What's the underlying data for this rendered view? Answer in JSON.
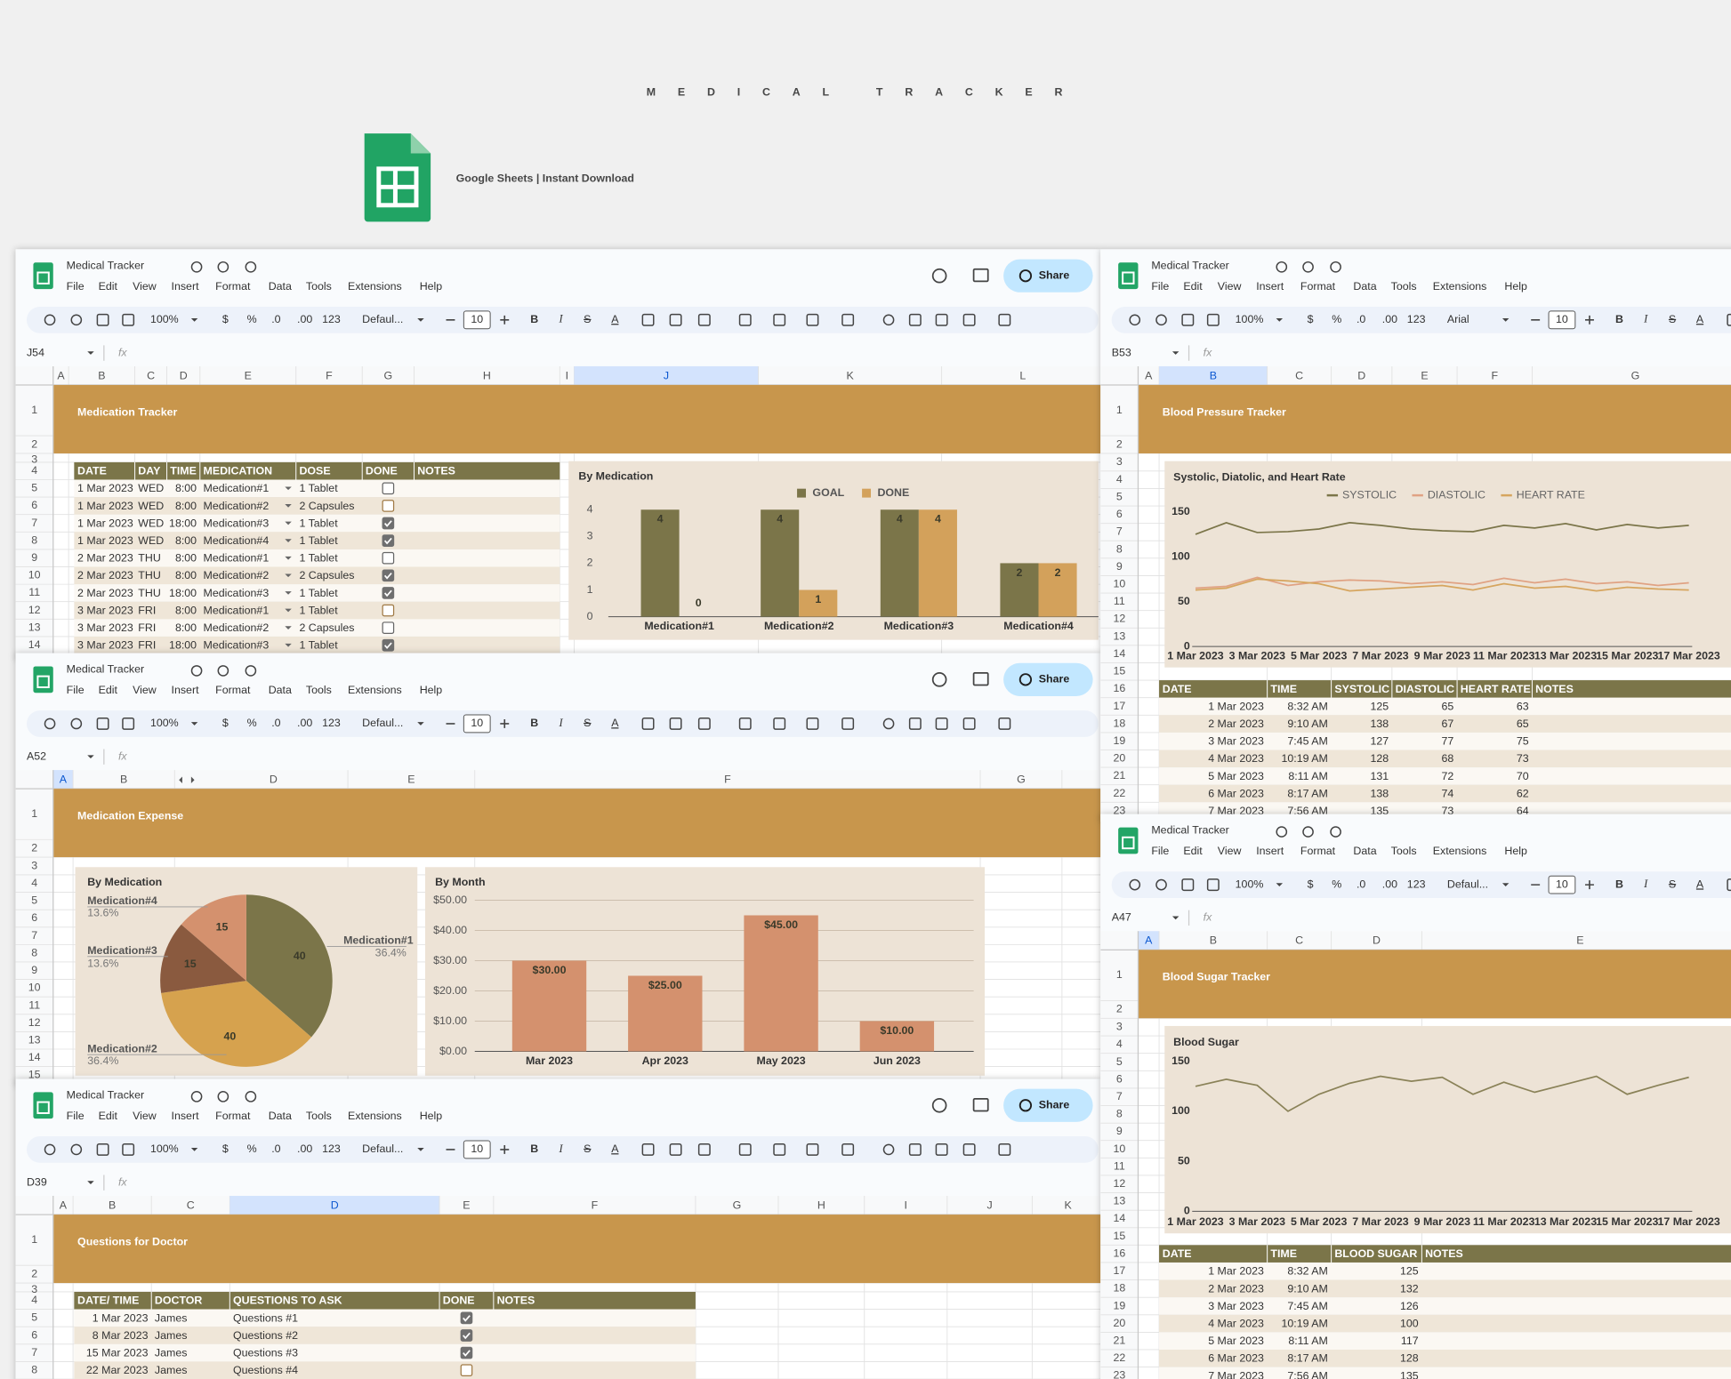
{
  "header": {
    "title": "MEDICAL TRACKER",
    "subtitle": "Google Sheets | Instant Download"
  },
  "app": {
    "doc_title": "Medical Tracker",
    "menus": [
      "File",
      "Edit",
      "View",
      "Insert",
      "Format",
      "Data",
      "Tools",
      "Extensions",
      "Help"
    ],
    "share": "Share",
    "zoom": "100%",
    "currency": "$",
    "percent": "%",
    "decrease_decimal": ".0",
    "increase_decimal": ".00",
    "number_format": "123",
    "font_size": 10,
    "bold": "B",
    "italic": "I",
    "strikethrough": "S",
    "text_color": "A",
    "formula": "fx"
  },
  "windows": [
    {
      "title": "Medication Tracker",
      "cell": "J54",
      "font": "Defaul...",
      "columns": [
        "A",
        "B",
        "C",
        "D",
        "E",
        "F",
        "G",
        "H",
        "I",
        "J",
        "K",
        "L"
      ],
      "rows": [
        1,
        2,
        3,
        4,
        5,
        6,
        7,
        8,
        9,
        10,
        11,
        12,
        13,
        14
      ],
      "table": {
        "headers": [
          "DATE",
          "DAY",
          "TIME",
          "MEDICATION",
          "DOSE",
          "DONE",
          "NOTES"
        ],
        "rows": [
          [
            "1 Mar 2023",
            "WED",
            "8:00",
            "Medication#1",
            "1 Tablet",
            false
          ],
          [
            "1 Mar 2023",
            "WED",
            "8:00",
            "Medication#2",
            "2 Capsules",
            false
          ],
          [
            "1 Mar 2023",
            "WED",
            "18:00",
            "Medication#3",
            "1 Tablet",
            true
          ],
          [
            "1 Mar 2023",
            "WED",
            "8:00",
            "Medication#4",
            "1 Tablet",
            true
          ],
          [
            "2 Mar 2023",
            "THU",
            "8:00",
            "Medication#1",
            "1 Tablet",
            false
          ],
          [
            "2 Mar 2023",
            "THU",
            "8:00",
            "Medication#2",
            "2 Capsules",
            true
          ],
          [
            "2 Mar 2023",
            "THU",
            "18:00",
            "Medication#3",
            "1 Tablet",
            true
          ],
          [
            "3 Mar 2023",
            "FRI",
            "8:00",
            "Medication#1",
            "1 Tablet",
            false
          ],
          [
            "3 Mar 2023",
            "FRI",
            "8:00",
            "Medication#2",
            "2 Capsules",
            false
          ],
          [
            "3 Mar 2023",
            "FRI",
            "18:00",
            "Medication#3",
            "1 Tablet",
            true
          ]
        ]
      },
      "charts": [
        {
          "type": "bar",
          "title": "By Medication",
          "categories": [
            "Medication#1",
            "Medication#2",
            "Medication#3",
            "Medication#4"
          ],
          "series": [
            {
              "name": "GOAL",
              "color": "#7b7549",
              "values": [
                4,
                4,
                4,
                2
              ]
            },
            {
              "name": "DONE",
              "color": "#d3a15b",
              "values": [
                0,
                1,
                4,
                2
              ]
            }
          ],
          "ylim": [
            0,
            4
          ],
          "yticks": [
            0,
            1,
            2,
            3,
            4
          ],
          "grid": false
        }
      ]
    },
    {
      "title": "Medication Expense",
      "cell": "A52",
      "font": "Defaul...",
      "columns": [
        "A",
        "B",
        "D",
        "E",
        "F",
        "G"
      ],
      "rows": [
        1,
        2,
        3,
        4,
        5,
        6,
        7,
        8,
        9,
        10,
        11,
        12,
        13,
        14,
        15
      ],
      "charts": [
        {
          "type": "pie",
          "title": "By Medication",
          "categories": [
            "Medication#1",
            "Medication#2",
            "Medication#3",
            "Medication#4"
          ],
          "values": [
            40,
            40,
            15,
            15
          ],
          "percent_labels": [
            "36.4%",
            "36.4%",
            "13.6%",
            "13.6%"
          ],
          "colors": [
            "#7b7549",
            "#d6a24e",
            "#8a5a3f",
            "#d4916e"
          ]
        },
        {
          "type": "bar",
          "title": "By Month",
          "categories": [
            "Mar 2023",
            "Apr 2023",
            "May 2023",
            "Jun 2023"
          ],
          "series": [
            {
              "color": "#d4916e",
              "values": [
                30,
                25,
                45,
                10
              ],
              "value_labels": [
                "$30.00",
                "$25.00",
                "$45.00",
                "$10.00"
              ]
            }
          ],
          "ylim": [
            0,
            50
          ],
          "yticks": [
            {
              "value": 0,
              "label": "$0.00"
            },
            {
              "value": 10,
              "label": "$10.00"
            },
            {
              "value": 20,
              "label": "$20.00"
            },
            {
              "value": 30,
              "label": "$30.00"
            },
            {
              "value": 40,
              "label": "$40.00"
            },
            {
              "value": 50,
              "label": "$50.00"
            }
          ],
          "grid": true
        }
      ]
    },
    {
      "title": "Questions for Doctor",
      "cell": "D39",
      "font": "Defaul...",
      "columns": [
        "A",
        "B",
        "C",
        "D",
        "E",
        "F",
        "G",
        "H",
        "I",
        "J",
        "K"
      ],
      "rows": [
        1,
        2,
        3,
        4,
        5,
        6,
        7,
        8
      ],
      "table": {
        "headers": [
          "DATE/ TIME",
          "DOCTOR",
          "QUESTIONS TO ASK",
          "DONE",
          "NOTES"
        ],
        "rows": [
          [
            "1 Mar 2023",
            "James",
            "Questions #1",
            true
          ],
          [
            "8 Mar 2023",
            "James",
            "Questions #2",
            true
          ],
          [
            "15 Mar 2023",
            "James",
            "Questions #3",
            true
          ],
          [
            "22 Mar 2023",
            "James",
            "Questions #4",
            false
          ]
        ]
      }
    },
    {
      "title": "Blood Pressure Tracker",
      "cell": "B53",
      "font": "Arial",
      "columns": [
        "A",
        "B",
        "C",
        "D",
        "E",
        "F",
        "G"
      ],
      "rows": [
        1,
        2,
        3,
        4,
        5,
        6,
        7,
        8,
        9,
        10,
        11,
        12,
        13,
        14,
        15,
        16,
        17,
        18,
        19,
        20,
        21,
        22,
        23
      ],
      "table": {
        "headers": [
          "DATE",
          "TIME",
          "SYSTOLIC",
          "DIASTOLIC",
          "HEART RATE",
          "NOTES"
        ],
        "rows": [
          [
            "1 Mar 2023",
            "8:32 AM",
            125,
            65,
            63
          ],
          [
            "2 Mar 2023",
            "9:10 AM",
            138,
            67,
            65
          ],
          [
            "3 Mar 2023",
            "7:45 AM",
            127,
            77,
            75
          ],
          [
            "4 Mar 2023",
            "10:19 AM",
            128,
            68,
            73
          ],
          [
            "5 Mar 2023",
            "8:11 AM",
            131,
            72,
            70
          ],
          [
            "6 Mar 2023",
            "8:17 AM",
            138,
            74,
            62
          ],
          [
            "7 Mar 2023",
            "7:56 AM",
            135,
            73,
            64
          ]
        ]
      },
      "charts": [
        {
          "type": "line",
          "title": "Systolic, Diatolic, and Heart Rate",
          "categories": [
            "1 Mar 2023",
            null,
            "3 Mar 2023",
            null,
            "5 Mar 2023",
            null,
            "7 Mar 2023",
            null,
            "9 Mar 2023",
            null,
            "11 Mar 2023",
            null,
            "13 Mar 2023",
            null,
            "15 Mar 2023",
            null,
            "17 Mar 2023"
          ],
          "series": [
            {
              "name": "SYSTOLIC",
              "color": "#7b7549",
              "values": [
                125,
                138,
                127,
                128,
                131,
                138,
                135,
                131,
                129,
                128,
                135,
                132,
                137,
                130,
                136,
                132,
                135
              ]
            },
            {
              "name": "DIASTOLIC",
              "color": "#e0a283",
              "values": [
                65,
                67,
                77,
                68,
                72,
                74,
                73,
                70,
                72,
                69,
                76,
                71,
                75,
                70,
                72,
                68,
                71
              ]
            },
            {
              "name": "HEART RATE",
              "color": "#d6a55e",
              "values": [
                63,
                65,
                75,
                73,
                70,
                62,
                64,
                66,
                68,
                63,
                70,
                65,
                67,
                62,
                66,
                64,
                63
              ]
            }
          ],
          "ylim": [
            0,
            150
          ],
          "yticks": [
            0,
            50,
            100,
            150
          ],
          "grid": false
        }
      ]
    },
    {
      "title": "Blood Sugar Tracker",
      "cell": "A47",
      "font": "Defaul...",
      "columns": [
        "A",
        "B",
        "C",
        "D",
        "E"
      ],
      "rows": [
        1,
        2,
        3,
        4,
        5,
        6,
        7,
        8,
        9,
        10,
        11,
        12,
        13,
        14,
        15,
        16,
        17,
        18,
        19,
        20,
        21,
        22,
        23
      ],
      "table": {
        "headers": [
          "DATE",
          "TIME",
          "BLOOD SUGAR",
          "NOTES"
        ],
        "rows": [
          [
            "1 Mar 2023",
            "8:32 AM",
            125
          ],
          [
            "2 Mar 2023",
            "9:10 AM",
            132
          ],
          [
            "3 Mar 2023",
            "7:45 AM",
            126
          ],
          [
            "4 Mar 2023",
            "10:19 AM",
            100
          ],
          [
            "5 Mar 2023",
            "8:11 AM",
            117
          ],
          [
            "6 Mar 2023",
            "8:17 AM",
            128
          ],
          [
            "7 Mar 2023",
            "7:56 AM",
            135
          ]
        ]
      },
      "charts": [
        {
          "type": "line",
          "title": "Blood Sugar",
          "categories": [
            "1 Mar 2023",
            null,
            "3 Mar 2023",
            null,
            "5 Mar 2023",
            null,
            "7 Mar 2023",
            null,
            "9 Mar 2023",
            null,
            "11 Mar 2023",
            null,
            "13 Mar 2023",
            null,
            "15 Mar 2023",
            null,
            "17 Mar 2023"
          ],
          "series": [
            {
              "color": "#8a8258",
              "values": [
                125,
                132,
                126,
                100,
                117,
                128,
                135,
                130,
                134,
                117,
                129,
                119,
                127,
                135,
                117,
                126,
                134
              ]
            }
          ],
          "ylim": [
            0,
            150
          ],
          "yticks": [
            0,
            50,
            100,
            150
          ],
          "grid": false
        }
      ]
    }
  ]
}
